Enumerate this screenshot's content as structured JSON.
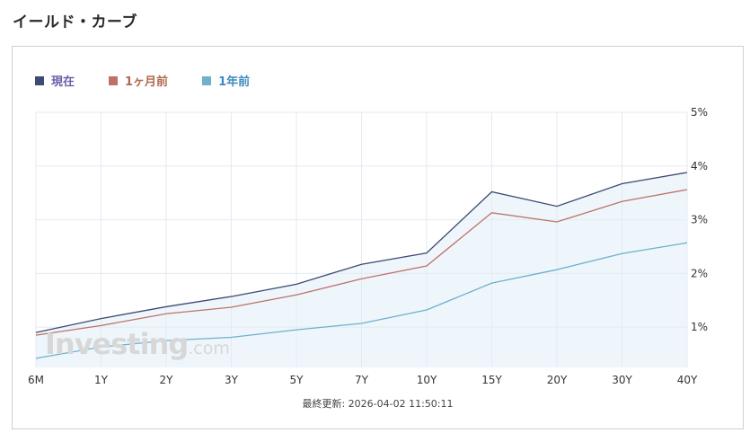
{
  "page": {
    "title": "イールド・カーブ"
  },
  "watermark": {
    "brand": "Investing",
    "suffix": ".com"
  },
  "footer": {
    "last_updated": "最終更新: 2026-04-02 11:50:11"
  },
  "colors": {
    "current": "#3d4a73",
    "month_ago": "#c0706a",
    "year_ago": "#6fb0cb",
    "area_fill": "#eef6fc",
    "grid": "#e4eaf2",
    "legend_text_current": "#6a5fa8",
    "legend_text_month": "#b06a50",
    "legend_text_year": "#3f8bbf"
  },
  "chart_data": {
    "type": "line",
    "categories": [
      "6M",
      "1Y",
      "2Y",
      "3Y",
      "5Y",
      "7Y",
      "10Y",
      "15Y",
      "20Y",
      "30Y",
      "40Y"
    ],
    "y_ticks": [
      "1%",
      "2%",
      "3%",
      "4%",
      "5%"
    ],
    "ylim": [
      0.25,
      5.0
    ],
    "y_axis_side": "right",
    "grid": true,
    "legend_position": "top-left",
    "series": [
      {
        "name": "現在",
        "values": [
          0.9,
          1.16,
          1.38,
          1.57,
          1.8,
          2.17,
          2.38,
          3.52,
          3.25,
          3.67,
          3.88
        ]
      },
      {
        "name": "1ヶ月前",
        "values": [
          0.85,
          1.03,
          1.25,
          1.37,
          1.6,
          1.9,
          2.14,
          3.13,
          2.96,
          3.34,
          3.56
        ]
      },
      {
        "name": "1年前",
        "values": [
          0.42,
          0.63,
          0.75,
          0.81,
          0.95,
          1.07,
          1.32,
          1.82,
          2.07,
          2.37,
          2.57
        ]
      }
    ]
  }
}
